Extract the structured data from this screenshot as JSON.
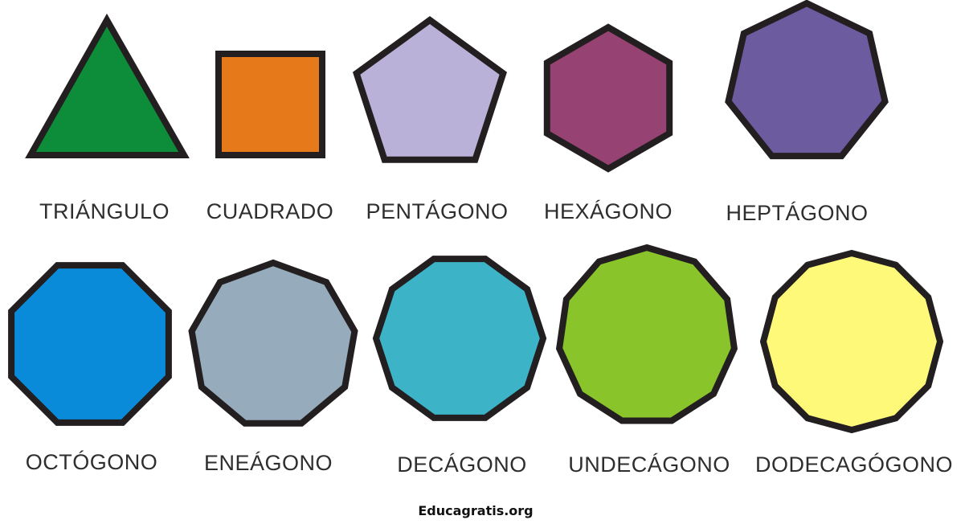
{
  "shapes": [
    {
      "id": "triangulo",
      "label": "TRIÁNGULO",
      "sides": 3,
      "color": "#0d8c3a"
    },
    {
      "id": "cuadrado",
      "label": "CUADRADO",
      "sides": 4,
      "color": "#e67a1b"
    },
    {
      "id": "pentagono",
      "label": "PENTÁGONO",
      "sides": 5,
      "color": "#b9b1d7"
    },
    {
      "id": "hexagono",
      "label": "HEXÁGONO",
      "sides": 6,
      "color": "#964273"
    },
    {
      "id": "heptagono",
      "label": "HEPTÁGONO",
      "sides": 7,
      "color": "#6c5c9f"
    },
    {
      "id": "octogono",
      "label": "OCTÓGONO",
      "sides": 8,
      "color": "#0a8bd9"
    },
    {
      "id": "eneagono",
      "label": "ENEÁGONO",
      "sides": 9,
      "color": "#96abbb"
    },
    {
      "id": "decagono",
      "label": "DECÁGONO",
      "sides": 10,
      "color": "#3cb3c7"
    },
    {
      "id": "undecagono",
      "label": "UNDECÁGONO",
      "sides": 11,
      "color": "#88c42a"
    },
    {
      "id": "dodecagono",
      "label": "DODECAGÓGONO",
      "sides": 12,
      "color": "#fff97a"
    }
  ],
  "stroke_color": "#231f20",
  "footer": "Educagratis.org"
}
